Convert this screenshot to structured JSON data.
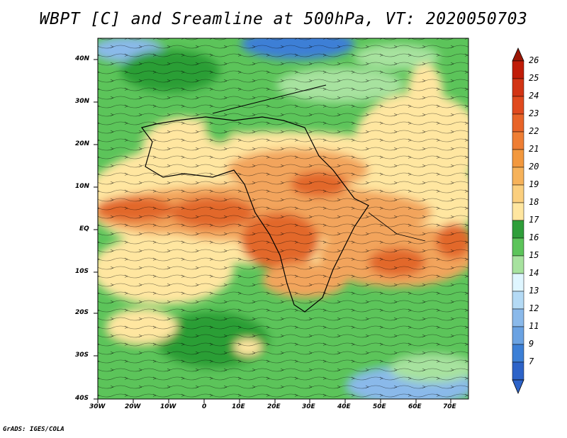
{
  "title": "WBPT [C] and Sreamline at 500hPa, VT: 2020050703",
  "footer": "GrADS: IGES/COLA",
  "colors": {
    "low_blue": "#3c7fd6",
    "blue": "#8ab9ea",
    "cyan": "#dff6ff",
    "light_green": "#a7e29f",
    "green": "#5cc45a",
    "dark_green": "#2a9e36",
    "yellow": "#ffe6a0",
    "orange": "#f2a45c",
    "dark_orange": "#e2672c",
    "red": "#c42d10",
    "dark_red": "#9c1706"
  },
  "map": {
    "latitude_labels": [
      "40N",
      "30N",
      "20N",
      "10N",
      "EQ",
      "10S",
      "20S",
      "30S",
      "40S"
    ],
    "longitude_labels": [
      "30W",
      "20W",
      "10W",
      "0",
      "10E",
      "20E",
      "30E",
      "40E",
      "50E",
      "60E",
      "70E"
    ]
  },
  "colorbar": {
    "labels": [
      "26",
      "25",
      "24",
      "23",
      "22",
      "21",
      "20",
      "19",
      "18",
      "17",
      "16",
      "15",
      "14",
      "13",
      "12",
      "11",
      "9",
      "7"
    ],
    "colors": [
      "#c01c08",
      "#d23414",
      "#e04a1e",
      "#e86428",
      "#ee7e34",
      "#f2983e",
      "#f6b25a",
      "#fbcf7e",
      "#ffe6a0",
      "#2f9e3a",
      "#5cc45a",
      "#a7e29f",
      "#dff6ff",
      "#b4daf5",
      "#8ab9ea",
      "#6aa2e2",
      "#3c7fd6",
      "#2d63c8"
    ]
  }
}
